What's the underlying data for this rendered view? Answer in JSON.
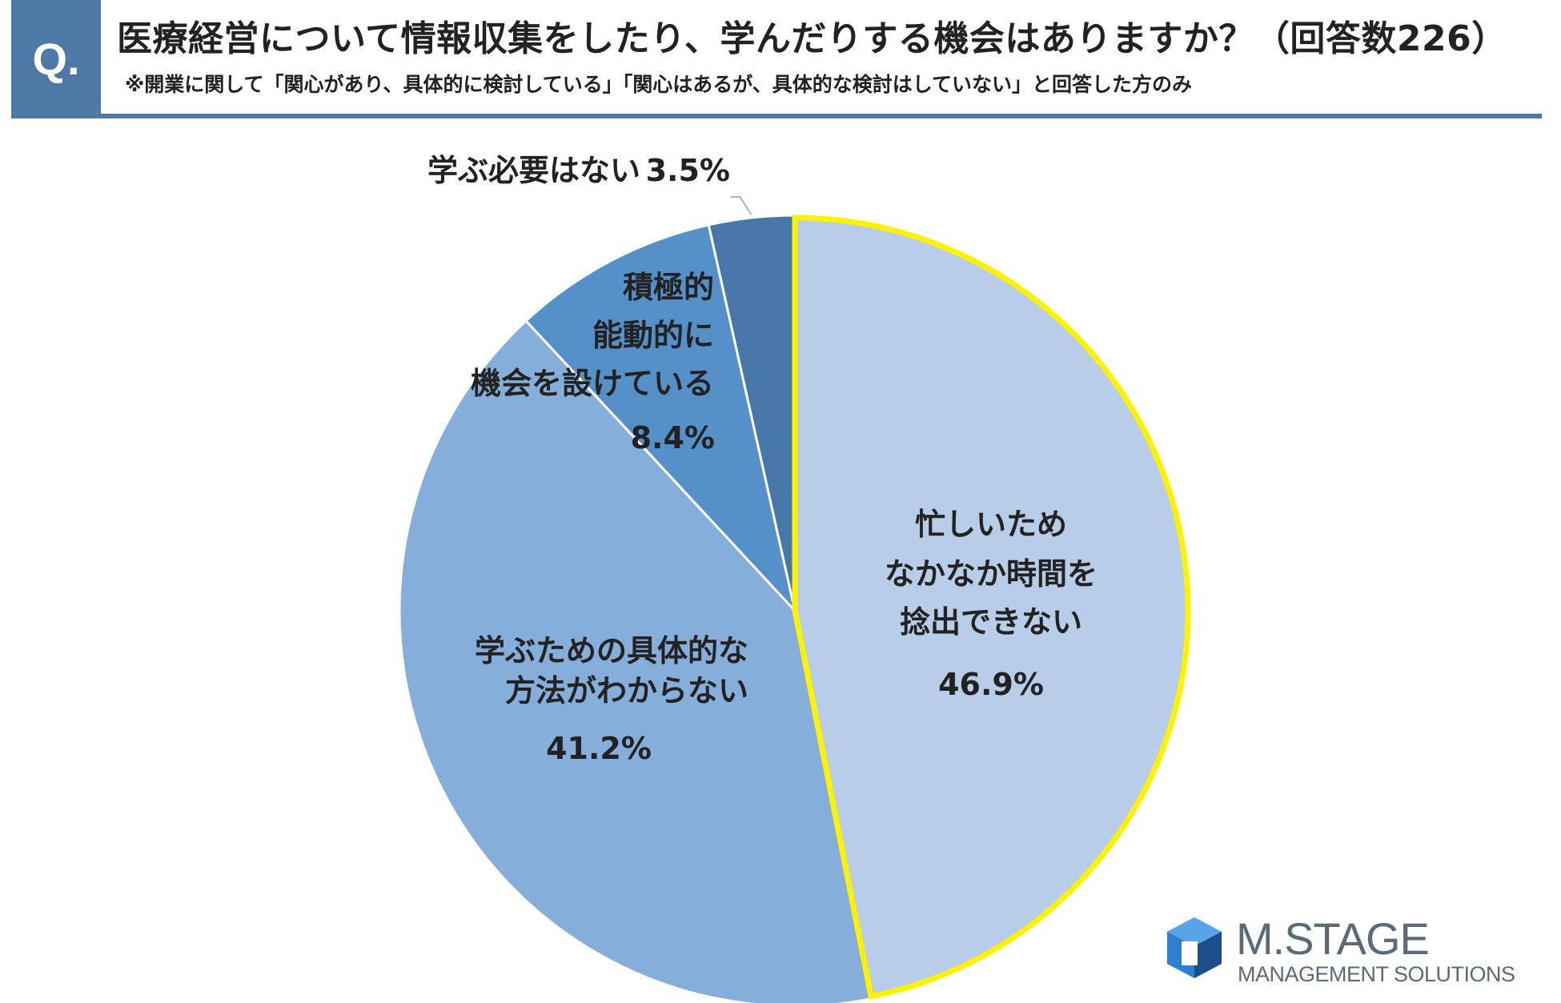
{
  "header": {
    "badge": "Q.",
    "title": "医療経営について情報収集をしたり、学んだりする機会はありますか？（回答数226）",
    "subtitle": "※開業に関して「関心があり、具体的に検討している」「関心はあるが、具体的な検討はしていない」と回答した方のみ"
  },
  "chart_data": {
    "type": "pie",
    "title": "医療経営について情報収集をしたり、学んだりする機会はありますか？（回答数226）",
    "start": "12 o'clock, clockwise",
    "highlight_index": 0,
    "slices": [
      {
        "label_lines": [
          "忙しいため",
          "なかなか時間を",
          "捻出できない"
        ],
        "value": 46.9,
        "value_label": "46.9%",
        "color": "#b7cde8"
      },
      {
        "label_lines": [
          "学ぶための具体的な",
          "方法がわからない"
        ],
        "value": 41.2,
        "value_label": "41.2%",
        "color": "#85aedb"
      },
      {
        "label_lines": [
          "積極的",
          "能動的に",
          "機会を設けている"
        ],
        "value": 8.4,
        "value_label": "8.4%",
        "color": "#5590c8"
      },
      {
        "label_lines": [
          "学ぶ必要はない"
        ],
        "value": 3.5,
        "value_label": "3.5%",
        "color": "#4677a8"
      }
    ],
    "highlight_color": "#fff200",
    "separator_color": "#ffffff"
  },
  "logo": {
    "name": "M.STAGE",
    "sub": "MANAGEMENT SOLUTIONS",
    "colors": {
      "primary": "#2f7fd0",
      "dark": "#1c4f8a",
      "text": "#5a6a79"
    }
  }
}
